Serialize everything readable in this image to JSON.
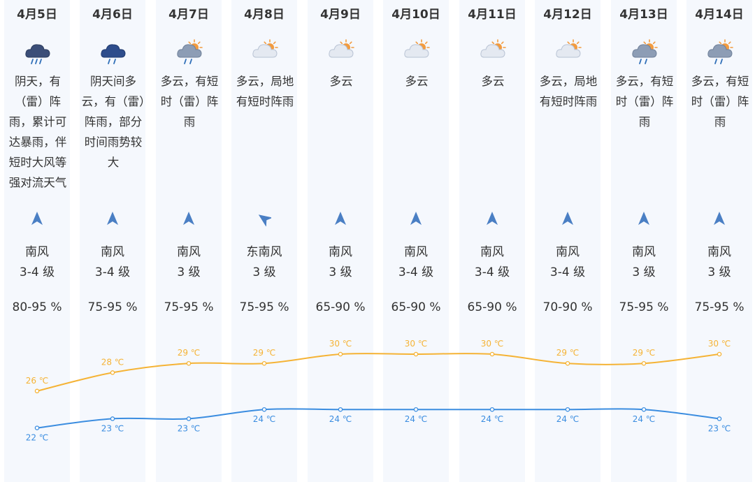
{
  "colors": {
    "column_bg": "#f5f8fd",
    "text": "#333333",
    "high_line": "#f5b335",
    "low_line": "#3b8de0",
    "arrow": "#4a7fc4"
  },
  "days": [
    {
      "date": "4月5日",
      "icon": "heavy-rain-icon",
      "weather": "阴天，有（雷）阵雨，累计可达暴雨，伴短时大风等强对流天气",
      "wind_dir": "南风",
      "wind_level": "3-4 级",
      "humidity": "80-95 %",
      "arrow": "north-arrow-icon"
    },
    {
      "date": "4月6日",
      "icon": "rain-cloud-icon",
      "weather": "阴天间多云，有（雷）阵雨，部分时间雨势较大",
      "wind_dir": "南风",
      "wind_level": "3-4 级",
      "humidity": "75-95 %",
      "arrow": "north-arrow-icon"
    },
    {
      "date": "4月7日",
      "icon": "sun-cloud-rain-icon",
      "weather": "多云，有短时（雷）阵雨",
      "wind_dir": "南风",
      "wind_level": "3 级",
      "humidity": "75-95 %",
      "arrow": "north-arrow-icon"
    },
    {
      "date": "4月8日",
      "icon": "sun-cloud-icon",
      "weather": "多云，局地有短时阵雨",
      "wind_dir": "东南风",
      "wind_level": "3 级",
      "humidity": "75-95 %",
      "arrow": "northwest-arrow-icon"
    },
    {
      "date": "4月9日",
      "icon": "sun-cloud-icon",
      "weather": "多云",
      "wind_dir": "南风",
      "wind_level": "3 级",
      "humidity": "65-90 %",
      "arrow": "north-arrow-icon"
    },
    {
      "date": "4月10日",
      "icon": "sun-cloud-icon",
      "weather": "多云",
      "wind_dir": "南风",
      "wind_level": "3-4 级",
      "humidity": "65-90 %",
      "arrow": "north-arrow-icon"
    },
    {
      "date": "4月11日",
      "icon": "sun-cloud-icon",
      "weather": "多云",
      "wind_dir": "南风",
      "wind_level": "3-4 级",
      "humidity": "65-90 %",
      "arrow": "north-arrow-icon"
    },
    {
      "date": "4月12日",
      "icon": "sun-cloud-icon",
      "weather": "多云，局地有短时阵雨",
      "wind_dir": "南风",
      "wind_level": "3-4 级",
      "humidity": "70-90 %",
      "arrow": "north-arrow-icon"
    },
    {
      "date": "4月13日",
      "icon": "sun-cloud-rain-icon",
      "weather": "多云，有短时（雷）阵雨",
      "wind_dir": "南风",
      "wind_level": "3 级",
      "humidity": "75-95 %",
      "arrow": "north-arrow-icon"
    },
    {
      "date": "4月14日",
      "icon": "sun-cloud-rain-icon",
      "weather": "多云，有短时（雷）阵雨",
      "wind_dir": "南风",
      "wind_level": "3 级",
      "humidity": "75-95 %",
      "arrow": "north-arrow-icon"
    }
  ],
  "chart_data": {
    "type": "line",
    "categories": [
      "4月5日",
      "4月6日",
      "4月7日",
      "4月8日",
      "4月9日",
      "4月10日",
      "4月11日",
      "4月12日",
      "4月13日",
      "4月14日"
    ],
    "unit": "℃",
    "series": [
      {
        "values": [
          26,
          28,
          29,
          29,
          30,
          30,
          30,
          29,
          29,
          30
        ]
      },
      {
        "values": [
          22,
          23,
          23,
          24,
          24,
          24,
          24,
          24,
          24,
          23
        ]
      }
    ],
    "ylim": [
      21,
      31
    ],
    "grid": false,
    "legend": false
  }
}
